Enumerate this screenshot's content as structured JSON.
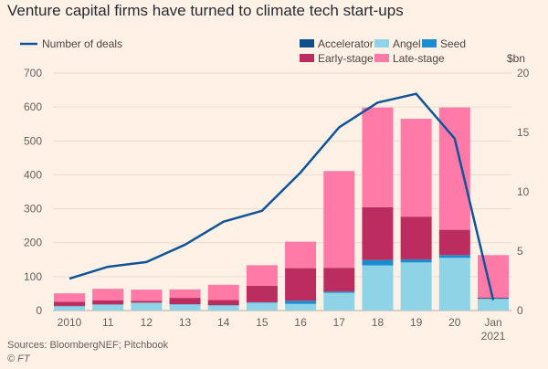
{
  "chart_data": {
    "type": "bar",
    "title": "Venture capital firms have turned to climate tech start-ups",
    "categories": [
      "2010",
      "11",
      "12",
      "13",
      "14",
      "15",
      "16",
      "17",
      "18",
      "19",
      "20",
      "Jan"
    ],
    "category_sublabels": {
      "Jan": "2021"
    },
    "stacked": true,
    "right_axis_unit": "$bn",
    "yright_lim": [
      0,
      20
    ],
    "yright_ticks": [
      0,
      5,
      10,
      15,
      20
    ],
    "yleft_lim": [
      0,
      700
    ],
    "yleft_ticks": [
      0,
      100,
      200,
      300,
      400,
      500,
      600,
      700
    ],
    "grid": true,
    "legend_position": "top",
    "series": [
      {
        "name": "Angel",
        "color": "#8fd3e6",
        "axis": "right",
        "values": [
          0.36,
          0.49,
          0.64,
          0.51,
          0.43,
          0.66,
          0.56,
          1.49,
          3.8,
          4.05,
          4.44,
          0.98
        ]
      },
      {
        "name": "Seed",
        "color": "#1a8cd0",
        "axis": "right",
        "values": [
          0.02,
          0.02,
          0.02,
          0.02,
          0.02,
          0.03,
          0.26,
          0.1,
          0.45,
          0.25,
          0.23,
          0.02
        ]
      },
      {
        "name": "Accelerator",
        "color": "#0d4f8b",
        "axis": "right",
        "values": [
          0.01,
          0.01,
          0.01,
          0.01,
          0.01,
          0.01,
          0.01,
          0.01,
          0.01,
          0.01,
          0.01,
          0.05
        ]
      },
      {
        "name": "Early-stage",
        "color": "#bb2d5f",
        "axis": "right",
        "values": [
          0.35,
          0.35,
          0.15,
          0.53,
          0.43,
          1.39,
          2.74,
          2.0,
          4.44,
          3.6,
          2.12,
          0.05
        ]
      },
      {
        "name": "Late-stage",
        "color": "#ff7aa6",
        "axis": "right",
        "values": [
          0.71,
          0.96,
          0.94,
          0.71,
          1.28,
          1.73,
          2.23,
          8.15,
          8.4,
          8.24,
          10.3,
          3.57
        ]
      },
      {
        "name": "Number of deals",
        "type": "line",
        "color": "#0f5499",
        "axis": "left",
        "values": [
          94,
          129,
          143,
          194,
          262,
          294,
          407,
          540,
          613,
          639,
          507,
          31
        ]
      }
    ]
  },
  "legend_order": [
    "Accelerator",
    "Angel",
    "Seed",
    "Early-stage",
    "Late-stage"
  ],
  "source": "Sources: BloombergNEF; Pitchbook",
  "copyright": "© FT"
}
